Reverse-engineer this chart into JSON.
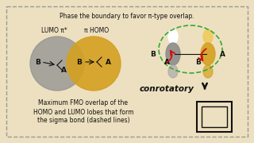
{
  "bg_color": "#ede0c0",
  "border_color": "#999999",
  "top_text": "Phase the boundary to favor π-type overlap.",
  "lumo_label": "LUMO π*",
  "homo_label": "π HOMO",
  "lumo_circle_color": "#909090",
  "homo_circle_color": "#d4a020",
  "conrotatory_text": "conrotatory",
  "bottom_text1": "Maximum FMO overlap of the",
  "bottom_text2": "HOMO and LUMO lobes that form",
  "bottom_text3": "the sigma bond (dashed lines)",
  "red_arrow_color": "#cc1111",
  "dashed_oval_color": "#33aa33",
  "black": "#111111",
  "white": "#ffffff",
  "gray_lobe": "#888888",
  "gold_lobe": "#d4a020"
}
